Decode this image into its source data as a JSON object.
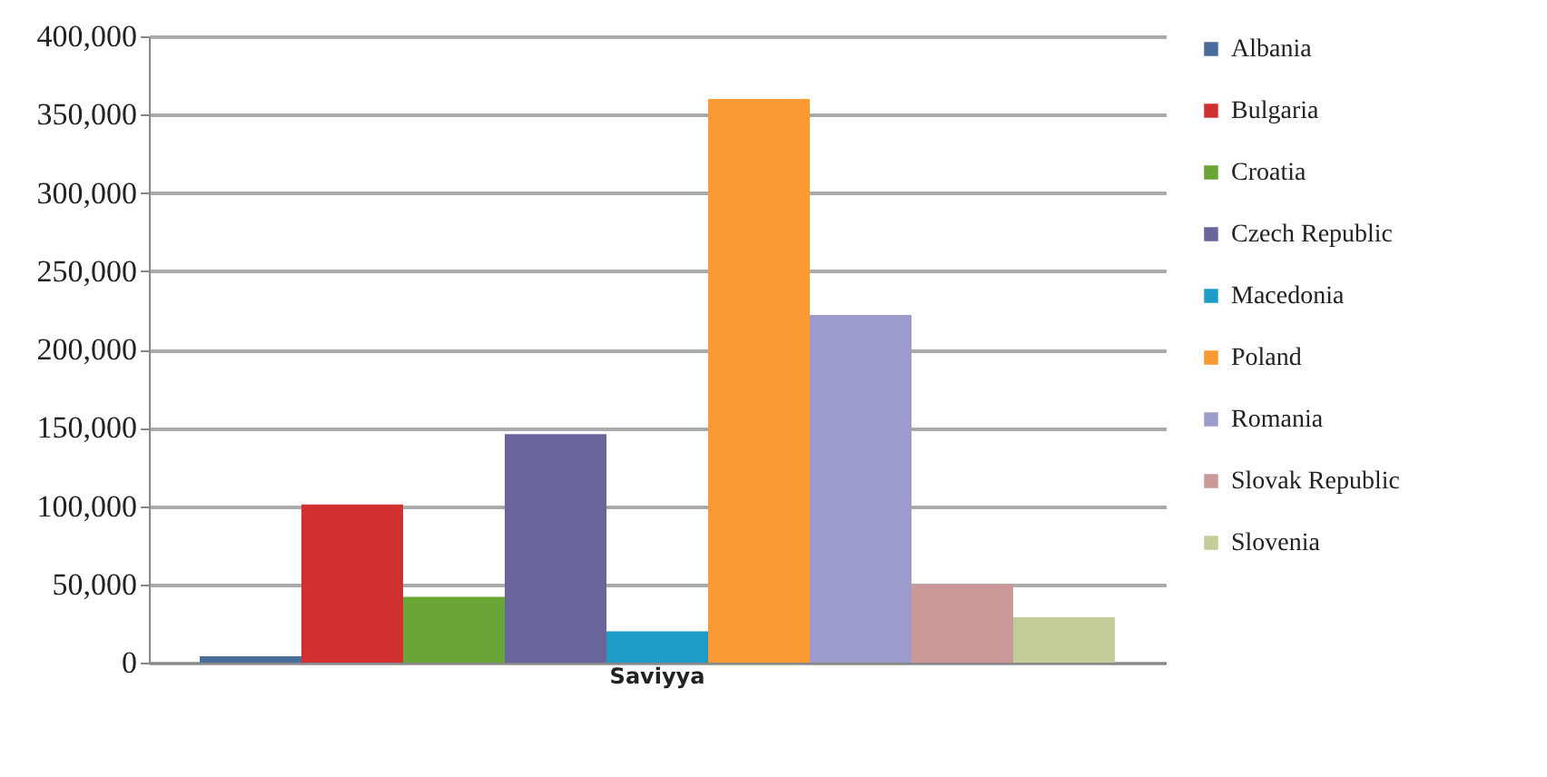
{
  "chart_data": {
    "type": "bar",
    "categories": [
      "Saviyya"
    ],
    "series": [
      {
        "name": "Albania",
        "color": "#4a6c9c",
        "values": [
          4000
        ]
      },
      {
        "name": "Bulgaria",
        "color": "#d03030",
        "values": [
          101000
        ]
      },
      {
        "name": "Croatia",
        "color": "#6aa636",
        "values": [
          42000
        ]
      },
      {
        "name": "Czech Republic",
        "color": "#67659a",
        "values": [
          146000
        ]
      },
      {
        "name": "Macedonia",
        "color": "#1e9cc8",
        "values": [
          20000
        ]
      },
      {
        "name": "Poland",
        "color": "#fb9a32",
        "values": [
          360000
        ]
      },
      {
        "name": "Romania",
        "color": "#9c9ccc",
        "values": [
          222000
        ]
      },
      {
        "name": "Slovak Republic",
        "color": "#cc9999",
        "values": [
          50000
        ]
      },
      {
        "name": "Slovenia",
        "color": "#c4cc99",
        "values": [
          29000
        ]
      }
    ],
    "ylim": [
      0,
      400000
    ],
    "yticks": [
      0,
      {
        "value": 50000,
        "label": "50,000"
      },
      {
        "value": 100000,
        "label": "100,000"
      },
      {
        "value": 150000,
        "label": "150,000"
      },
      {
        "value": 200000,
        "label": "200,000"
      },
      {
        "value": 250000,
        "label": "250,000"
      },
      {
        "value": 300000,
        "label": "300,000"
      },
      {
        "value": 350000,
        "label": "350,000"
      },
      {
        "value": 400000,
        "label": "400,000"
      }
    ],
    "grid": "y",
    "legend": "right"
  }
}
